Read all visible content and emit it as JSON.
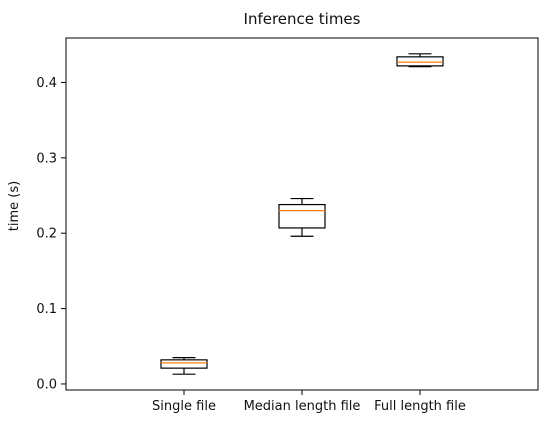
{
  "chart_data": {
    "type": "box",
    "title": "Inference times",
    "xlabel": "",
    "ylabel": "time (s)",
    "categories": [
      "Single file",
      "Median length file",
      "Full length file"
    ],
    "boxes": [
      {
        "whisker_low": 0.013,
        "q1": 0.021,
        "median": 0.028,
        "q3": 0.032,
        "whisker_high": 0.035
      },
      {
        "whisker_low": 0.196,
        "q1": 0.207,
        "median": 0.23,
        "q3": 0.238,
        "whisker_high": 0.246
      },
      {
        "whisker_low": 0.421,
        "q1": 0.422,
        "median": 0.427,
        "q3": 0.434,
        "whisker_high": 0.438
      }
    ],
    "yticks": [
      0.0,
      0.1,
      0.2,
      0.3,
      0.4
    ],
    "ytick_labels": [
      "0.0",
      "0.1",
      "0.2",
      "0.3",
      "0.4"
    ],
    "ylim": [
      -0.008,
      0.459
    ],
    "grid": false,
    "colors": {
      "box": "#000000",
      "median": "#ff7f0e",
      "axes": "#000000",
      "background": "#ffffff"
    }
  }
}
